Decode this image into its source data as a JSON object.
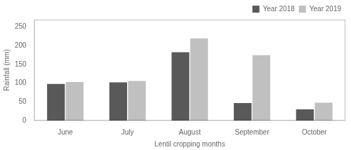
{
  "chart_data": {
    "type": "bar",
    "categories": [
      "June",
      "July",
      "August",
      "September",
      "October"
    ],
    "series": [
      {
        "name": "Year 2018",
        "color": "#595959",
        "values": [
          98,
          102,
          183,
          47,
          30
        ]
      },
      {
        "name": "Year 2019",
        "color": "#c0c0c0",
        "values": [
          103,
          106,
          220,
          175,
          48
        ]
      }
    ],
    "xlabel": "Lentil cropping months",
    "ylabel": "Rainfall (mm)",
    "ylim": [
      0,
      270
    ],
    "yticks": [
      0,
      50,
      100,
      150,
      200,
      250
    ],
    "grid": false,
    "legend": "upper right"
  }
}
